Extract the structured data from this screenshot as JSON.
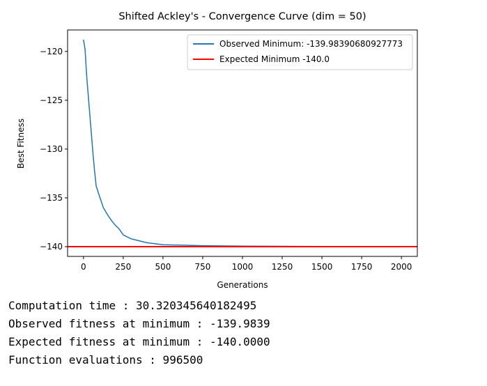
{
  "chart_data": {
    "type": "line",
    "title": "Shifted Ackley's - Convergence Curve (dim = 50)",
    "x_label": "Generations",
    "y_label": "Best Fitness",
    "x": [
      0,
      10,
      20,
      30,
      40,
      50,
      60,
      70,
      80,
      90,
      100,
      125,
      150,
      175,
      200,
      225,
      250,
      300,
      400,
      500,
      750,
      1000,
      1500,
      2000
    ],
    "series": [
      {
        "name": "Observed Minimum: -139.98390680927773",
        "color": "#1f77b4",
        "values": [
          -118.8,
          -119.8,
          -122.5,
          -124.5,
          -126.5,
          -128.5,
          -130.5,
          -132.3,
          -133.8,
          -134.3,
          -134.8,
          -136.0,
          -136.7,
          -137.3,
          -137.8,
          -138.2,
          -138.8,
          -139.2,
          -139.6,
          -139.8,
          -139.9,
          -139.95,
          -139.98,
          -139.984
        ]
      }
    ],
    "reference_lines": [
      {
        "name": "Expected Minimum -140.0",
        "color": "#ff0000",
        "value": -140
      }
    ],
    "xlim": [
      -100,
      2100
    ],
    "ylim": [
      -141,
      -117.8
    ],
    "xticks": [
      0,
      250,
      500,
      750,
      1000,
      1250,
      1500,
      1750,
      2000
    ],
    "yticks": [
      {
        "value": -120,
        "label": "−120"
      },
      {
        "value": -125,
        "label": "−125"
      },
      {
        "value": -130,
        "label": "−130"
      },
      {
        "value": -135,
        "label": "−135"
      },
      {
        "value": -140,
        "label": "−140"
      }
    ],
    "legend": "upper right"
  },
  "output_lines": [
    "Computation time : 30.320345640182495",
    "Observed fitness at minimum : -139.9839",
    "Expected fitness at minimum : -140.0000",
    "Function evaluations : 996500"
  ]
}
